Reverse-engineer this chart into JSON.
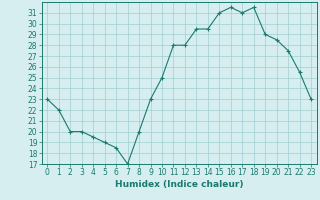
{
  "x": [
    0,
    1,
    2,
    3,
    4,
    5,
    6,
    7,
    8,
    9,
    10,
    11,
    12,
    13,
    14,
    15,
    16,
    17,
    18,
    19,
    20,
    21,
    22,
    23
  ],
  "y": [
    23,
    22,
    20,
    20,
    19.5,
    19,
    18.5,
    17,
    20,
    23,
    25,
    28,
    28,
    29.5,
    29.5,
    31,
    31.5,
    31,
    31.5,
    29,
    28.5,
    27.5,
    25.5,
    23
  ],
  "line_color": "#1a7a6e",
  "marker": "+",
  "marker_size": 3,
  "bg_color": "#d6eef0",
  "grid_color": "#a0cdd0",
  "xlabel": "Humidex (Indice chaleur)",
  "xlim": [
    -0.5,
    23.5
  ],
  "ylim": [
    17,
    32
  ],
  "yticks": [
    17,
    18,
    19,
    20,
    21,
    22,
    23,
    24,
    25,
    26,
    27,
    28,
    29,
    30,
    31
  ],
  "xticks": [
    0,
    1,
    2,
    3,
    4,
    5,
    6,
    7,
    8,
    9,
    10,
    11,
    12,
    13,
    14,
    15,
    16,
    17,
    18,
    19,
    20,
    21,
    22,
    23
  ],
  "tick_color": "#1a7a6e",
  "xlabel_color": "#1a7a6e",
  "tick_fontsize": 5.5,
  "xlabel_fontsize": 6.5
}
